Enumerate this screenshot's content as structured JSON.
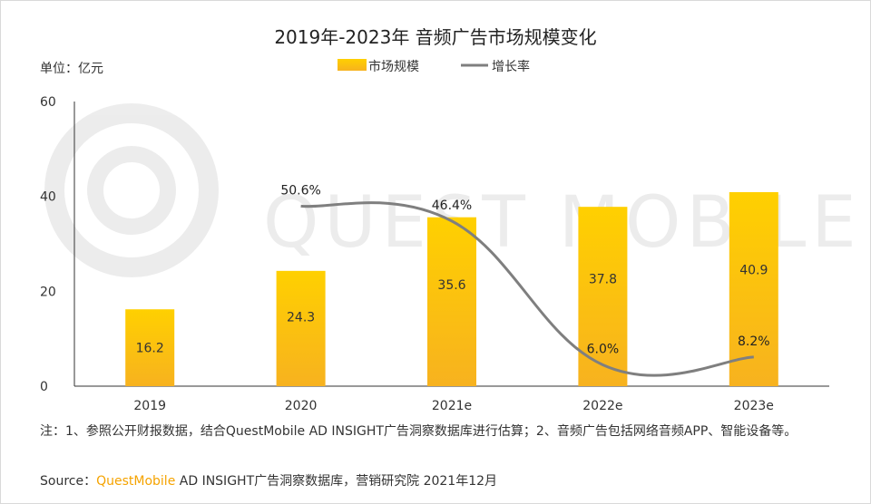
{
  "chart_data": {
    "type": "bar",
    "title": "2019年-2023年 音频广告市场规模变化",
    "unit_label": "单位：亿元",
    "categories": [
      "2019",
      "2020",
      "2021e",
      "2022e",
      "2023e"
    ],
    "series": [
      {
        "name": "市场规模",
        "type": "bar",
        "values": [
          16.2,
          24.3,
          35.6,
          37.8,
          40.9
        ]
      },
      {
        "name": "增长率",
        "type": "line",
        "values": [
          null,
          50.6,
          46.4,
          6.0,
          8.2
        ],
        "labels": [
          "",
          "50.6%",
          "46.4%",
          "6.0%",
          "8.2%"
        ]
      }
    ],
    "ylim": [
      0,
      60
    ],
    "yticks": [
      0,
      20,
      40,
      60
    ],
    "growth_range": [
      0,
      80
    ],
    "legend_position": "top-center",
    "watermark": "QUEST MOBILE",
    "colors": {
      "bar_top": "#ffd000",
      "bar_bottom": "#f7b21f",
      "line": "#7f7f7f",
      "axis": "#333333"
    }
  },
  "notes": "注：1、参照公开财报数据，结合QuestMobile AD INSIGHT广告洞察数据库进行估算；2、音频广告包括网络音频APP、智能设备等。",
  "source": {
    "label": "Source：",
    "brand": "QuestMobile",
    "rest": " AD INSIGHT广告洞察数据库，营销研究院 2021年12月"
  }
}
